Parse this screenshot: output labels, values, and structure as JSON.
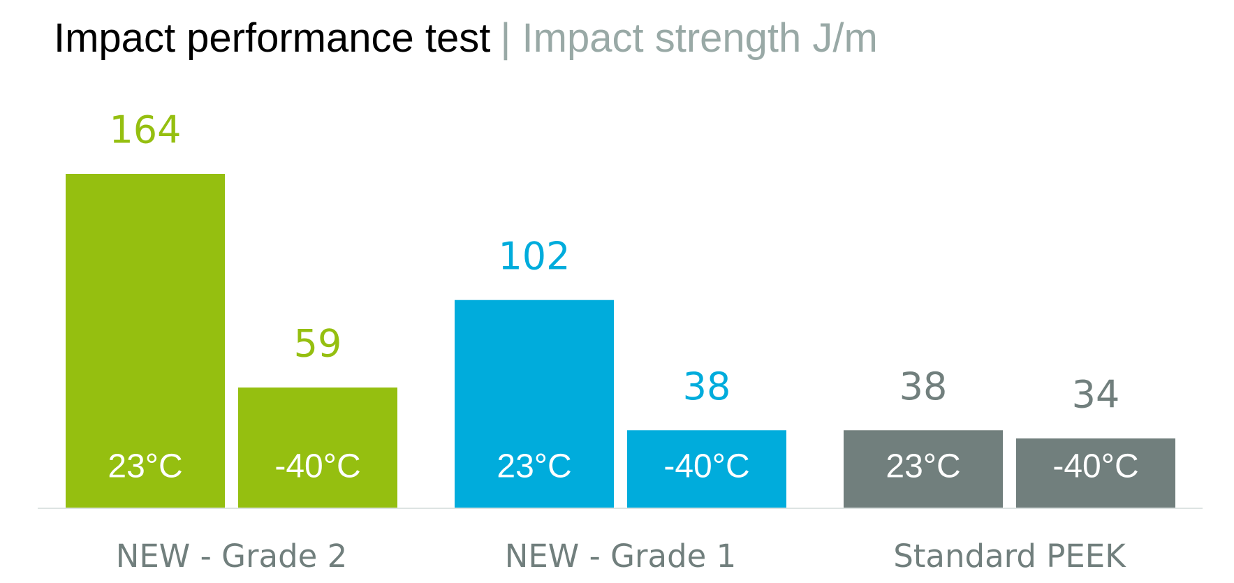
{
  "chart_data": {
    "type": "bar",
    "title": "Impact performance test",
    "subtitle": "| Impact strength J/m",
    "categories": [
      "NEW - Grade 2",
      "NEW - Grade 1",
      "Standard PEEK"
    ],
    "category_colors": [
      "#95bf10",
      "#00acdc",
      "#717f7d"
    ],
    "series": [
      {
        "name": "23°C",
        "values": [
          164,
          102,
          38
        ]
      },
      {
        "name": "-40°C",
        "values": [
          59,
          38,
          34
        ]
      }
    ]
  }
}
